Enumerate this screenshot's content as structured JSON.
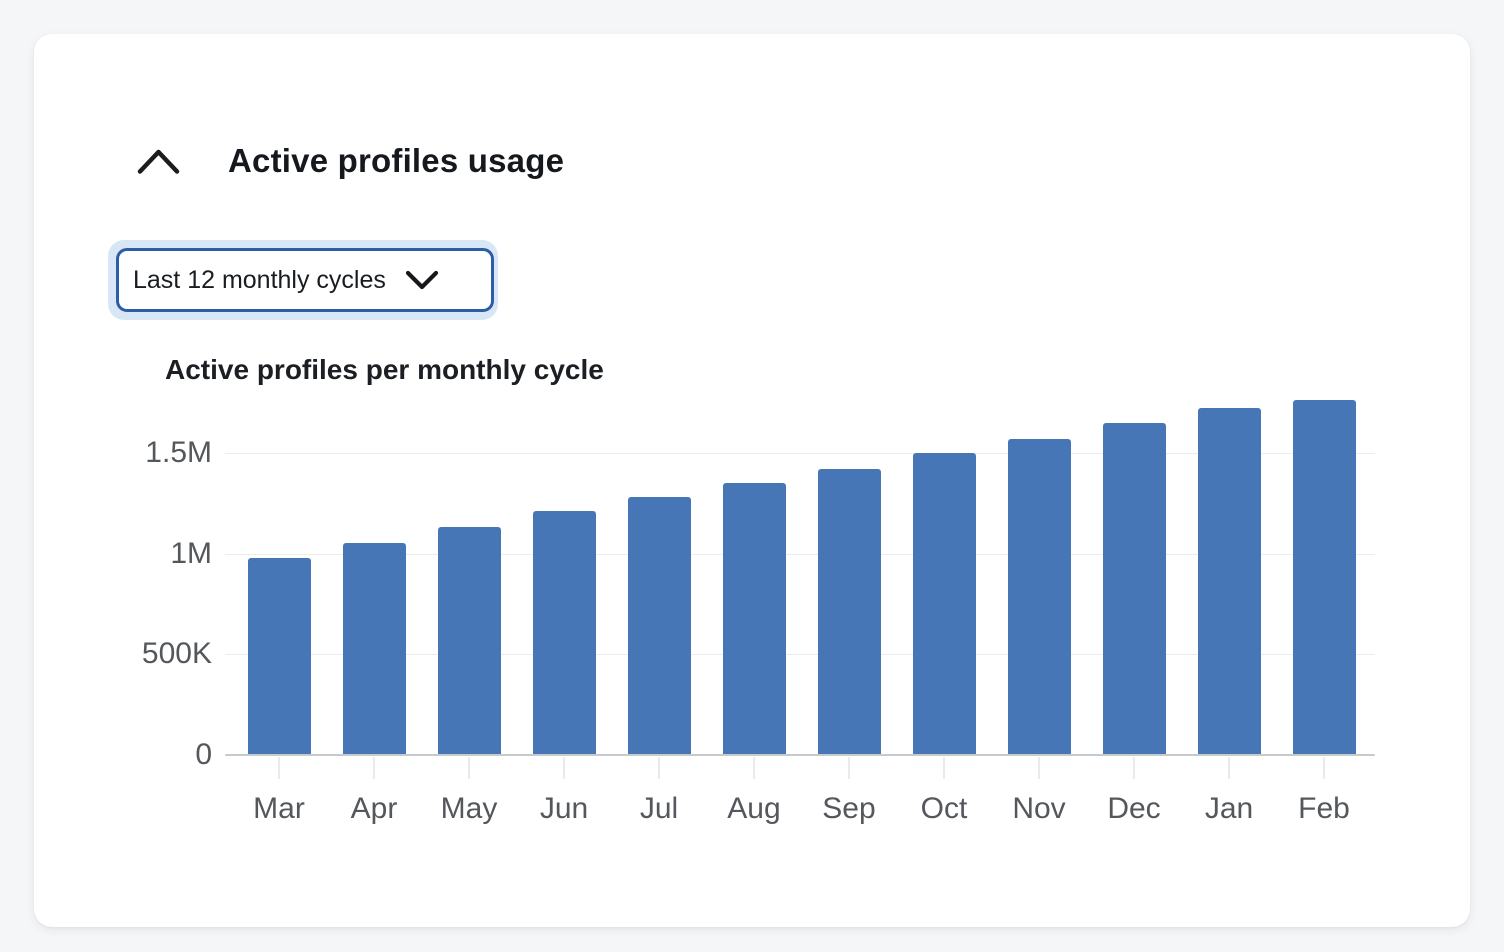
{
  "header": {
    "title": "Active profiles usage",
    "collapse_icon": "chevron-up-icon"
  },
  "filter": {
    "selected_label": "Last 12 monthly cycles",
    "dropdown_icon": "chevron-down-icon",
    "state": "focused"
  },
  "chart_data": {
    "type": "bar",
    "title": "Active profiles per monthly cycle",
    "categories": [
      "Mar",
      "Apr",
      "May",
      "Jun",
      "Jul",
      "Aug",
      "Sep",
      "Oct",
      "Nov",
      "Dec",
      "Jan",
      "Feb"
    ],
    "values": [
      980000,
      1050000,
      1130000,
      1210000,
      1280000,
      1350000,
      1420000,
      1500000,
      1570000,
      1650000,
      1720000,
      1760000
    ],
    "y_ticks": [
      {
        "value": 0,
        "label": "0"
      },
      {
        "value": 500000,
        "label": "500K"
      },
      {
        "value": 1000000,
        "label": "1M"
      },
      {
        "value": 1500000,
        "label": "1.5M"
      }
    ],
    "ylim": [
      0,
      1800000
    ],
    "xlabel": "",
    "ylabel": "",
    "grid": true,
    "legend": "none",
    "bar_color": "#4676b5"
  },
  "colors": {
    "accent_border": "#2d5da9",
    "focus_ring": "#d8e6f6",
    "axis_label": "#54575c",
    "gridline": "#ececee",
    "baseline": "#c7cacd",
    "x_tick": "#e8eaec",
    "title_text": "#15181c"
  }
}
